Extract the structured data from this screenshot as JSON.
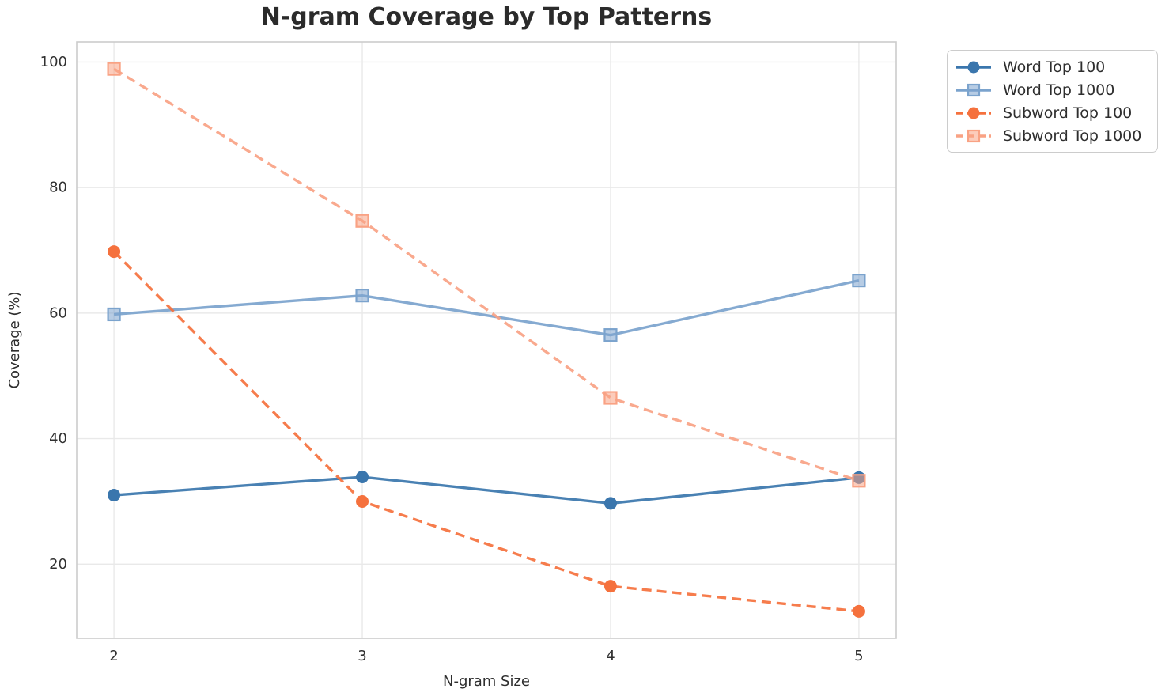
{
  "chart_data": {
    "type": "line",
    "title": "N-gram Coverage by Top Patterns",
    "xlabel": "N-gram Size",
    "ylabel": "Coverage (%)",
    "x": [
      2,
      3,
      4,
      5
    ],
    "xticks": [
      "2",
      "3",
      "4",
      "5"
    ],
    "yticks": [
      "20",
      "40",
      "60",
      "80",
      "100"
    ],
    "ytick_values": [
      20,
      40,
      60,
      80,
      100
    ],
    "xlim": [
      1.85,
      5.15
    ],
    "ylim": [
      8.2,
      103.2
    ],
    "grid": true,
    "legend_position": "outside-upper-right",
    "series": [
      {
        "name": "Word Top 100",
        "values": [
          31.0,
          33.9,
          29.7,
          33.8
        ],
        "color": "#3A76AD",
        "marker": "circle",
        "linestyle": "solid"
      },
      {
        "name": "Word Top 1000",
        "values": [
          59.8,
          62.8,
          56.5,
          65.2
        ],
        "color": "#7BA3CD",
        "marker": "square",
        "linestyle": "solid"
      },
      {
        "name": "Subword Top 100",
        "values": [
          69.8,
          30.0,
          16.5,
          12.5
        ],
        "color": "#F5713D",
        "marker": "circle",
        "linestyle": "dashed"
      },
      {
        "name": "Subword Top 1000",
        "values": [
          98.9,
          74.7,
          46.5,
          33.3
        ],
        "color": "#F9A284",
        "marker": "square",
        "linestyle": "dashed"
      }
    ],
    "style": {
      "grid_color": "#e9e9e9",
      "spine_color": "#cccccc",
      "tick_label_color": "#303030",
      "axis_label_color": "#2e2e2e",
      "title_color": "#2b2b2b"
    }
  }
}
